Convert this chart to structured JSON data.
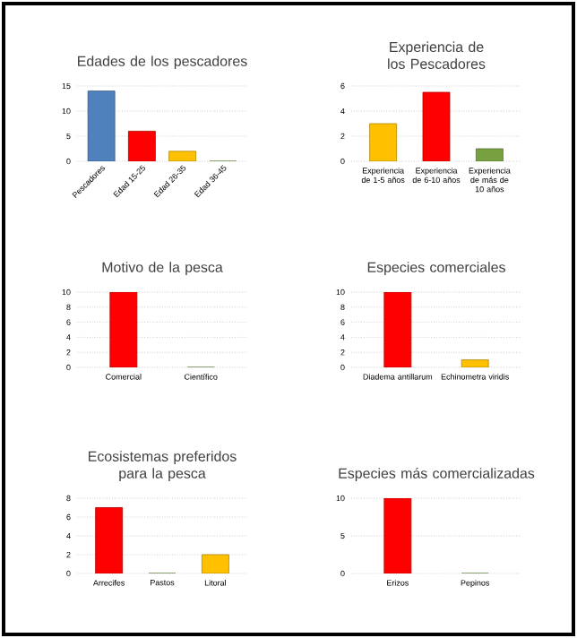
{
  "chart_data": [
    {
      "type": "bar",
      "title": "Edades de los pescadores",
      "categories": [
        "Pescadores",
        "Edad 15-25",
        "Edad 26-35",
        "Edad 36-45"
      ],
      "values": [
        14,
        6,
        2,
        0
      ],
      "colors": [
        "#4f81bd",
        "#ff0000",
        "#ffc000",
        "#77a040"
      ],
      "ylim": [
        0,
        15
      ],
      "yticks": [
        0,
        5,
        10,
        15
      ],
      "grid": "y"
    },
    {
      "type": "bar",
      "title": "Experiencia de los Pescadores",
      "categories": [
        "Experiencia de 1-5 años",
        "Experiencia de 6-10 años",
        "Experiencia de más de 10 años"
      ],
      "values": [
        3,
        5.5,
        1
      ],
      "colors": [
        "#ffc000",
        "#ff0000",
        "#77a040"
      ],
      "ylim": [
        0,
        6
      ],
      "yticks": [
        0,
        2,
        4,
        6
      ],
      "grid": "y"
    },
    {
      "type": "bar",
      "title": "Motivo de la pesca",
      "categories": [
        "Comercial",
        "Científico"
      ],
      "values": [
        10,
        0
      ],
      "colors": [
        "#ff0000",
        "#77a040"
      ],
      "ylim": [
        0,
        10
      ],
      "yticks": [
        0,
        2,
        4,
        6,
        8,
        10
      ],
      "grid": "y"
    },
    {
      "type": "bar",
      "title": "Especies comerciales",
      "categories": [
        "Diadema antillarum",
        "Echinometra viridis"
      ],
      "values": [
        10,
        1
      ],
      "colors": [
        "#ff0000",
        "#ffc000"
      ],
      "ylim": [
        0,
        10
      ],
      "yticks": [
        0,
        2,
        4,
        6,
        8,
        10
      ],
      "grid": "y"
    },
    {
      "type": "bar",
      "title": "Ecosistemas preferidos para la pesca",
      "categories": [
        "Arrecifes",
        "Pastos",
        "Litoral"
      ],
      "values": [
        7,
        0,
        2
      ],
      "colors": [
        "#ff0000",
        "#77a040",
        "#ffc000"
      ],
      "ylim": [
        0,
        8
      ],
      "yticks": [
        0,
        2,
        4,
        6,
        8
      ],
      "grid": "y"
    },
    {
      "type": "bar",
      "title": "Especies más comercializadas",
      "categories": [
        "Erizos",
        "Pepinos"
      ],
      "values": [
        10,
        0
      ],
      "colors": [
        "#ff0000",
        "#77a040"
      ],
      "ylim": [
        0,
        10
      ],
      "yticks": [
        0,
        5,
        10
      ],
      "grid": "y"
    }
  ]
}
